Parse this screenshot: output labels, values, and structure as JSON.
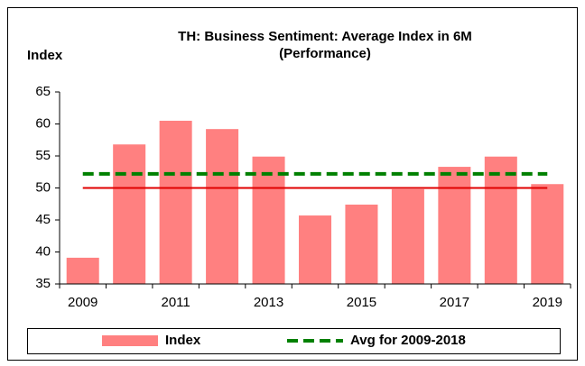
{
  "chart_data": {
    "type": "bar",
    "title": [
      "TH: Business Sentiment: Average Index in 6M",
      "(Performance)"
    ],
    "y_label": "Index",
    "categories": [
      "2009",
      null,
      "2011",
      null,
      "2013",
      null,
      "2015",
      null,
      "2017",
      null,
      "2019"
    ],
    "series": [
      {
        "name": "Index",
        "type": "bar",
        "color": "#ff8080",
        "values": [
          39.1,
          56.8,
          60.5,
          59.2,
          54.9,
          45.7,
          47.4,
          49.8,
          53.3,
          54.9,
          50.6
        ]
      },
      {
        "name": "Avg for 2009-2018",
        "type": "line",
        "dashed": true,
        "color": "#008000",
        "values": [
          52.2,
          52.2,
          52.2,
          52.2,
          52.2,
          52.2,
          52.2,
          52.2,
          52.2,
          52.2,
          52.2
        ]
      }
    ],
    "reference_line": {
      "value": 50,
      "color": "#e00000"
    },
    "ylim": [
      35,
      65
    ],
    "yticks": [
      35,
      40,
      45,
      50,
      55,
      60,
      65
    ],
    "legend": "bottom"
  }
}
